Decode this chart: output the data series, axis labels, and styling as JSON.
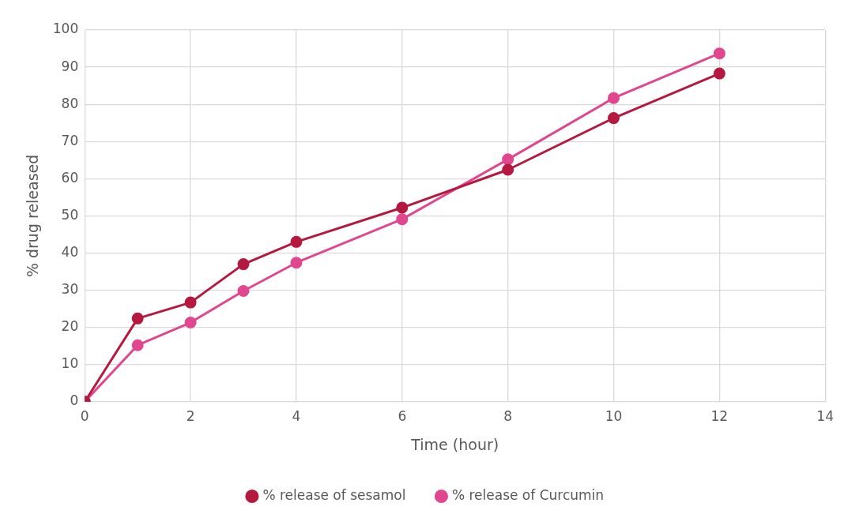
{
  "chart_data": {
    "type": "line",
    "xlabel": "Time (hour)",
    "ylabel": "% drug released",
    "x": [
      0,
      1,
      2,
      3,
      4,
      6,
      8,
      10,
      12
    ],
    "series": [
      {
        "name": "% release of sesamol",
        "color": "#b5193f",
        "values": [
          0,
          22.4,
          26.7,
          37.0,
          43.0,
          52.2,
          62.4,
          76.3,
          88.3
        ]
      },
      {
        "name": "% release of Curcumin",
        "color": "#e0478f",
        "values": [
          0,
          15.2,
          21.3,
          29.8,
          37.4,
          49.1,
          65.2,
          81.7,
          93.7
        ]
      }
    ],
    "xlim": [
      0,
      14
    ],
    "xticks": [
      0,
      2,
      4,
      6,
      8,
      10,
      12,
      14
    ],
    "ylim": [
      0,
      100
    ],
    "yticks": [
      0,
      10,
      20,
      30,
      40,
      50,
      60,
      70,
      80,
      90,
      100
    ],
    "grid": true,
    "legend": "bottom",
    "marker": "circle",
    "line_style": "solid"
  }
}
